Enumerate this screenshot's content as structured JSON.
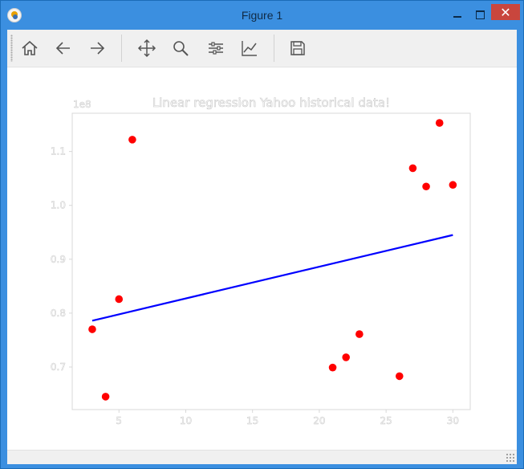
{
  "window": {
    "title": "Figure 1",
    "controls": {
      "minimize": "minimize",
      "maximize": "maximize",
      "close": "✕"
    }
  },
  "toolbar": {
    "buttons": [
      {
        "name": "home",
        "icon": "home-icon"
      },
      {
        "name": "back",
        "icon": "arrow-left-icon"
      },
      {
        "name": "forward",
        "icon": "arrow-right-icon"
      },
      {
        "name": "pan",
        "icon": "move-icon"
      },
      {
        "name": "zoom",
        "icon": "zoom-icon"
      },
      {
        "name": "subplots",
        "icon": "sliders-icon"
      },
      {
        "name": "customize",
        "icon": "line-chart-icon"
      },
      {
        "name": "save",
        "icon": "save-icon"
      }
    ]
  },
  "chart_data": {
    "type": "scatter",
    "title": "Linear regression Yahoo historical data!",
    "offset_text": "1e8",
    "xlim": [
      1.5,
      31.3
    ],
    "ylim": [
      0.621,
      1.171
    ],
    "x_ticks": [
      5,
      10,
      15,
      20,
      25,
      30
    ],
    "x_tick_labels": [
      "5",
      "10",
      "15",
      "20",
      "25",
      "30"
    ],
    "y_ticks": [
      0.7,
      0.8,
      0.9,
      1.0,
      1.1
    ],
    "y_tick_labels": [
      "0.7",
      "0.8",
      "0.9",
      "1.0",
      "1.1"
    ],
    "series": [
      {
        "kind": "scatter",
        "color": "#ff0000",
        "points": [
          {
            "x": 3,
            "y": 0.77
          },
          {
            "x": 4,
            "y": 0.645
          },
          {
            "x": 5,
            "y": 0.826
          },
          {
            "x": 6,
            "y": 1.122
          },
          {
            "x": 21,
            "y": 0.699
          },
          {
            "x": 22,
            "y": 0.718
          },
          {
            "x": 23,
            "y": 0.761
          },
          {
            "x": 26,
            "y": 0.683
          },
          {
            "x": 27,
            "y": 1.069
          },
          {
            "x": 28,
            "y": 1.035
          },
          {
            "x": 29,
            "y": 1.153
          },
          {
            "x": 30,
            "y": 1.038
          }
        ]
      },
      {
        "kind": "line",
        "color": "#0000ff",
        "points": [
          {
            "x": 3,
            "y": 0.786
          },
          {
            "x": 30,
            "y": 0.945
          }
        ]
      }
    ],
    "grid": false,
    "text_color": "#ffffff",
    "frame_color": "#d8d8d8"
  }
}
